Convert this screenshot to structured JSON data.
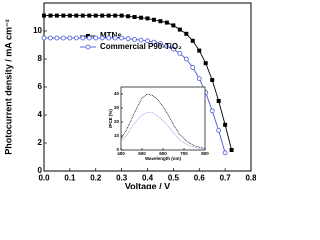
{
  "chart_data": [
    {
      "type": "line",
      "xlabel": "Voltage / V",
      "ylabel": "Photocurrent density / mA cm⁻²",
      "x": [
        0,
        0.025,
        0.05,
        0.075,
        0.1,
        0.125,
        0.15,
        0.175,
        0.2,
        0.225,
        0.25,
        0.275,
        0.3,
        0.325,
        0.35,
        0.375,
        0.4,
        0.425,
        0.45,
        0.475,
        0.5,
        0.525,
        0.55,
        0.575,
        0.6,
        0.625,
        0.65,
        0.675,
        0.7,
        0.725
      ],
      "series": [
        {
          "name": "MTNs",
          "color": "#000000",
          "marker": "square",
          "values": [
            11.1,
            11.1,
            11.1,
            11.1,
            11.1,
            11.1,
            11.1,
            11.1,
            11.1,
            11.1,
            11.1,
            11.1,
            11.1,
            11.05,
            11.0,
            10.95,
            10.9,
            10.8,
            10.7,
            10.6,
            10.4,
            10.1,
            9.8,
            9.3,
            8.6,
            7.7,
            6.5,
            5.0,
            3.3,
            1.5
          ]
        },
        {
          "name": "Commercial P90-TiO₂",
          "color": "#4a5bd6",
          "marker": "circle",
          "values": [
            9.5,
            9.5,
            9.5,
            9.5,
            9.5,
            9.5,
            9.5,
            9.5,
            9.5,
            9.5,
            9.5,
            9.5,
            9.5,
            9.45,
            9.4,
            9.35,
            9.3,
            9.2,
            9.1,
            8.9,
            8.7,
            8.4,
            8.0,
            7.4,
            6.6,
            5.6,
            4.3,
            2.9,
            1.3,
            null
          ]
        }
      ],
      "xlim": [
        0,
        0.8
      ],
      "xticks": [
        {
          "value": 0,
          "label": "0.0"
        },
        0.1,
        0.2,
        0.3,
        0.4,
        0.5,
        0.6,
        0.7,
        0.8
      ],
      "ylim": [
        0,
        12
      ],
      "yticks": [
        0,
        2,
        4,
        6,
        8,
        10
      ],
      "legend": "upper center"
    },
    {
      "type": "line",
      "xlabel": "Wavelength (nm)",
      "ylabel": "IPCE (%)",
      "x": [
        400,
        425,
        450,
        475,
        500,
        525,
        550,
        575,
        600,
        625,
        650,
        675,
        700,
        725,
        750,
        775,
        800
      ],
      "series": [
        {
          "color": "#000000",
          "linestyle": "dotted",
          "values": [
            8,
            14,
            22,
            30,
            37,
            40,
            39,
            36,
            31,
            25,
            18,
            12,
            8,
            5,
            3,
            2,
            1
          ]
        },
        {
          "color": "#8f8fe6",
          "linestyle": "dotted",
          "values": [
            6,
            10,
            16,
            21,
            25,
            27,
            26.5,
            24,
            21,
            17,
            12,
            8,
            5,
            3,
            2,
            1,
            1
          ]
        }
      ],
      "xlim": [
        400,
        800
      ],
      "xticks": [
        400,
        500,
        600,
        700,
        800
      ],
      "ylim": [
        0,
        45
      ],
      "yticks": [
        0,
        10,
        20,
        30,
        40
      ]
    }
  ]
}
